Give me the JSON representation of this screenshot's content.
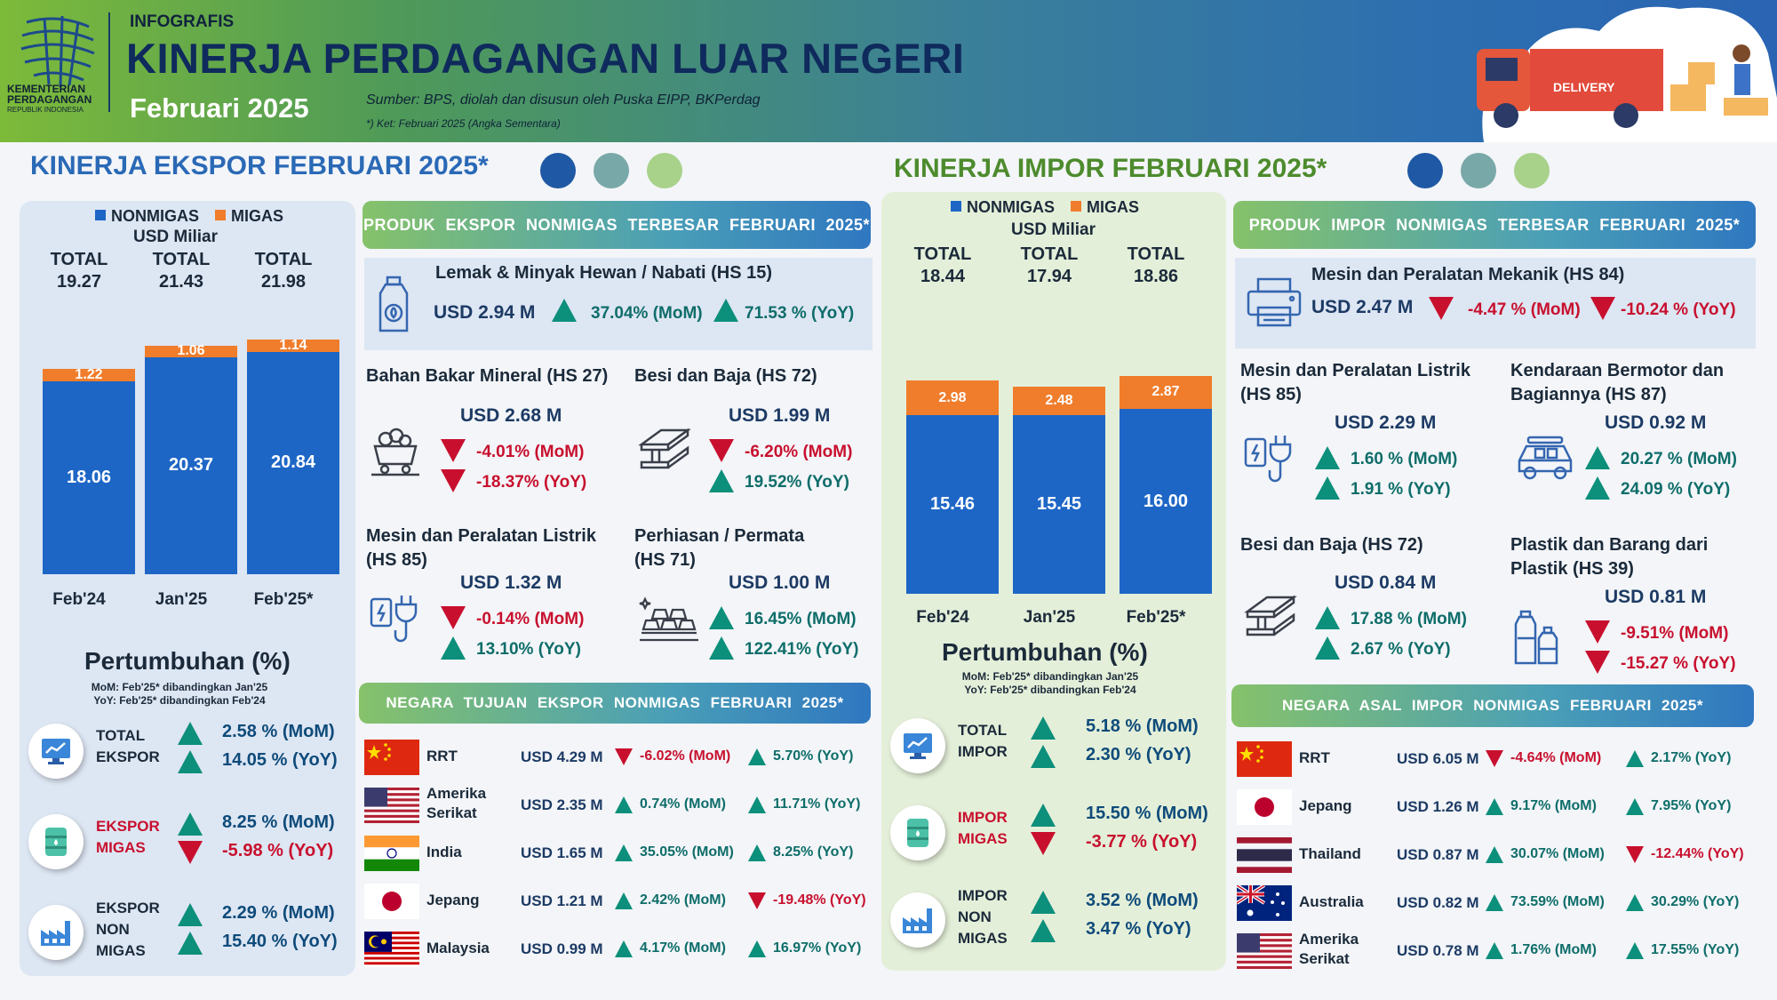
{
  "header": {
    "logo_line1": "KEMENTERIAN",
    "logo_line2": "PERDAGANGAN",
    "logo_line3": "REPUBLIK INDONESIA",
    "kicker": "INFOGRAFIS",
    "title": "KINERJA PERDAGANGAN LUAR NEGERI",
    "period": "Februari 2025",
    "source": "Sumber: BPS, diolah dan disusun oleh Puska EIPP, BKPerdag",
    "note": "*) Ket: Februari 2025 (Angka Sementara)",
    "truck_label": "DELIVERY"
  },
  "colors": {
    "nonmigas": "#1d66c6",
    "migas": "#f07d2b",
    "up": "#0c8f7b",
    "down": "#c8102e",
    "export_title": "#2a69b6",
    "import_title": "#4d8b2d"
  },
  "ekspor": {
    "section_title": "KINERJA EKSPOR FEBRUARI 2025*",
    "legend_nonmigas": "NONMIGAS",
    "legend_migas": "MIGAS",
    "unit": "USD Miliar",
    "growth_title": "Pertumbuhan  (%)",
    "growth_note1": "MoM:  Feb'25* dibandingkan  Jan'25",
    "growth_note2": "YoY: Feb'25* dibandingkan  Feb'24",
    "growth": [
      {
        "label1": "TOTAL",
        "label2": "EKSPOR",
        "label3": "",
        "icon": "chart-monitor-icon",
        "mom": "2.58  %  (MoM)",
        "yoy": "14.05  %  (YoY)",
        "mom_dir": "up",
        "yoy_dir": "up"
      },
      {
        "label1": "EKSPOR",
        "label2": "MIGAS",
        "label3": "",
        "icon": "oil-barrel-icon",
        "mom": "8.25  %  (MoM)",
        "yoy": "-5.98  %  (YoY)",
        "mom_dir": "up",
        "yoy_dir": "down"
      },
      {
        "label1": "EKSPOR",
        "label2": "NON",
        "label3": "MIGAS",
        "icon": "factory-icon",
        "mom": "2.29  %  (MoM)",
        "yoy": "15.40  %  (YoY)",
        "mom_dir": "up",
        "yoy_dir": "up"
      }
    ],
    "products_banner": "PRODUK EKSPOR NONMIGAS TERBESAR FEBRUARI 2025*",
    "top_product": {
      "name": "Lemak & Minyak Hewan / Nabati (HS 15)",
      "usd": "USD  2.94  M",
      "mom": "37.04% (MoM)",
      "yoy": "71.53 % (YoY)",
      "icon": "oil-bottle-icon"
    },
    "products": [
      {
        "name1": "Bahan Bakar Mineral (HS 27)",
        "name2": "",
        "usd": "USD     2.68 M",
        "mom": "-4.01% (MoM)",
        "yoy": "-18.37% (YoY)",
        "mom_dir": "down",
        "yoy_dir": "down",
        "icon": "coal-cart-icon"
      },
      {
        "name1": "Besi  dan Baja (HS 72)",
        "name2": "",
        "usd": "USD     1.99  M",
        "mom": "-6.20% (MoM)",
        "yoy": "19.52% (YoY)",
        "mom_dir": "down",
        "yoy_dir": "up",
        "icon": "steel-beam-icon"
      },
      {
        "name1": "Mesin dan Peralatan Listrik",
        "name2": "(HS 85)",
        "usd": "USD     1.32  M",
        "mom": "-0.14% (MoM)",
        "yoy": "13.10% (YoY)",
        "mom_dir": "down",
        "yoy_dir": "up",
        "icon": "electric-plug-icon"
      },
      {
        "name1": "Perhiasan / Permata",
        "name2": "(HS 71)",
        "usd": "USD     1.00  M",
        "mom": "16.45% (MoM)",
        "yoy": "122.41% (YoY)",
        "mom_dir": "up",
        "yoy_dir": "up",
        "icon": "gold-bars-icon"
      }
    ],
    "countries_banner": "NEGARA  TUJUAN EKSPOR NONMIGAS FEBRUARI  2025*",
    "countries": [
      {
        "name1": "RRT",
        "name2": "",
        "flag": "china",
        "usd": "USD 4.29  M",
        "mom": "-6.02% (MoM)",
        "yoy": "5.70% (YoY)",
        "mom_dir": "down",
        "yoy_dir": "up"
      },
      {
        "name1": "Amerika",
        "name2": "Serikat",
        "flag": "usa",
        "usd": "USD 2.35  M",
        "mom": "0.74% (MoM)",
        "yoy": "11.71% (YoY)",
        "mom_dir": "up",
        "yoy_dir": "up"
      },
      {
        "name1": "India",
        "name2": "",
        "flag": "india",
        "usd": "USD 1.65  M",
        "mom": "35.05% (MoM)",
        "yoy": "8.25% (YoY)",
        "mom_dir": "up",
        "yoy_dir": "up"
      },
      {
        "name1": "Jepang",
        "name2": "",
        "flag": "japan",
        "usd": "USD 1.21  M",
        "mom": "2.42% (MoM)",
        "yoy": "-19.48% (YoY)",
        "mom_dir": "up",
        "yoy_dir": "down"
      },
      {
        "name1": "Malaysia",
        "name2": "",
        "flag": "malaysia",
        "usd": "USD 0.99  M",
        "mom": "4.17% (MoM)",
        "yoy": "16.97% (YoY)",
        "mom_dir": "up",
        "yoy_dir": "up"
      }
    ]
  },
  "impor": {
    "section_title": "KINERJA IMPOR FEBRUARI 2025*",
    "legend_nonmigas": "NONMIGAS",
    "legend_migas": "MIGAS",
    "unit": "USD Miliar",
    "growth_title": "Pertumbuhan  (%)",
    "growth_note1": "MoM:  Feb'25* dibandingkan  Jan'25",
    "growth_note2": "YoY: Feb'25* dibandingkan  Feb'24",
    "growth": [
      {
        "label1": "TOTAL",
        "label2": "IMPOR",
        "label3": "",
        "icon": "chart-monitor-icon",
        "mom": "5.18 %  (MoM)",
        "yoy": "2.30 %  (YoY)",
        "mom_dir": "up",
        "yoy_dir": "up"
      },
      {
        "label1": "IMPOR",
        "label2": "MIGAS",
        "label3": "",
        "icon": "oil-barrel-icon",
        "mom": "15.50 %  (MoM)",
        "yoy": "-3.77 %  (YoY)",
        "mom_dir": "up",
        "yoy_dir": "down"
      },
      {
        "label1": "IMPOR",
        "label2": "NON",
        "label3": "MIGAS",
        "icon": "factory-icon",
        "mom": "3.52 %  (MoM)",
        "yoy": "3.47 %  (YoY)",
        "mom_dir": "up",
        "yoy_dir": "up"
      }
    ],
    "products_banner": "PRODUK IMPOR NONMIGAS TERBESAR FEBRUARI 2025*",
    "top_product": {
      "name": "Mesin dan Peralatan Mekanik (HS 84)",
      "usd": "USD  2.47 M",
      "mom": "-4.47 % (MoM)",
      "yoy": "-10.24 % (YoY)",
      "icon": "printer-machine-icon"
    },
    "products": [
      {
        "name1": "Mesin dan Peralatan Listrik",
        "name2": "(HS 85)",
        "usd": "USD     2.29 M",
        "mom": "1.60 % (MoM)",
        "yoy": "1.91 % (YoY)",
        "mom_dir": "up",
        "yoy_dir": "up",
        "icon": "electric-plug-icon"
      },
      {
        "name1": "Kendaraan Bermotor dan",
        "name2": "Bagiannya (HS 87)",
        "usd": "USD     0.92  M",
        "mom": "20.27 % (MoM)",
        "yoy": "24.09 % (YoY)",
        "mom_dir": "up",
        "yoy_dir": "up",
        "icon": "car-icon"
      },
      {
        "name1": "Besi dan Baja (HS 72)",
        "name2": "",
        "usd": "USD     0.84  M",
        "mom": "17.88 % (MoM)",
        "yoy": "2.67 % (YoY)",
        "mom_dir": "up",
        "yoy_dir": "up",
        "icon": "steel-beam-icon"
      },
      {
        "name1": "Plastik dan Barang dari",
        "name2": "Plastik (HS 39)",
        "usd": "USD     0.81  M",
        "mom": "-9.51% (MoM)",
        "yoy": "-15.27 % (YoY)",
        "mom_dir": "down",
        "yoy_dir": "down",
        "icon": "plastic-bottles-icon"
      }
    ],
    "countries_banner": "NEGARA  ASAL IMPOR NONMIGAS FEBRUARI  2025*",
    "countries": [
      {
        "name1": "RRT",
        "name2": "",
        "flag": "china",
        "usd": "USD 6.05  M",
        "mom": "-4.64% (MoM)",
        "yoy": "2.17% (YoY)",
        "mom_dir": "down",
        "yoy_dir": "up"
      },
      {
        "name1": "Jepang",
        "name2": "",
        "flag": "japan",
        "usd": "USD 1.26  M",
        "mom": "9.17% (MoM)",
        "yoy": "7.95% (YoY)",
        "mom_dir": "up",
        "yoy_dir": "up"
      },
      {
        "name1": "Thailand",
        "name2": "",
        "flag": "thailand",
        "usd": "USD 0.87  M",
        "mom": "30.07% (MoM)",
        "yoy": "-12.44% (YoY)",
        "mom_dir": "up",
        "yoy_dir": "down"
      },
      {
        "name1": "Australia",
        "name2": "",
        "flag": "australia",
        "usd": "USD 0.82  M",
        "mom": "73.59% (MoM)",
        "yoy": "30.29% (YoY)",
        "mom_dir": "up",
        "yoy_dir": "up"
      },
      {
        "name1": "Amerika",
        "name2": "Serikat",
        "flag": "usa",
        "usd": "USD 0.78  M",
        "mom": "1.76% (MoM)",
        "yoy": "17.55% (YoY)",
        "mom_dir": "up",
        "yoy_dir": "up"
      }
    ]
  },
  "chart_data": [
    {
      "type": "bar",
      "stacked": true,
      "categories": [
        "Feb'24",
        "Jan'25",
        "Feb'25*"
      ],
      "totals_label": "TOTAL",
      "totals": [
        19.27,
        21.43,
        21.98
      ],
      "series": [
        {
          "name": "NONMIGAS",
          "values": [
            18.06,
            20.37,
            20.84
          ]
        },
        {
          "name": "MIGAS",
          "values": [
            1.22,
            1.06,
            1.14
          ]
        }
      ],
      "ylabel": "USD Miliar",
      "ylim": [
        0,
        24
      ],
      "legend": "top"
    },
    {
      "type": "bar",
      "stacked": true,
      "categories": [
        "Feb'24",
        "Jan'25",
        "Feb'25*"
      ],
      "totals_label": "TOTAL",
      "totals": [
        18.44,
        17.94,
        18.86
      ],
      "series": [
        {
          "name": "NONMIGAS",
          "values": [
            15.46,
            15.45,
            16.0
          ]
        },
        {
          "name": "MIGAS",
          "values": [
            2.98,
            2.48,
            2.87
          ]
        }
      ],
      "ylabel": "USD Miliar",
      "ylim": [
        0,
        20
      ],
      "legend": "top"
    }
  ]
}
